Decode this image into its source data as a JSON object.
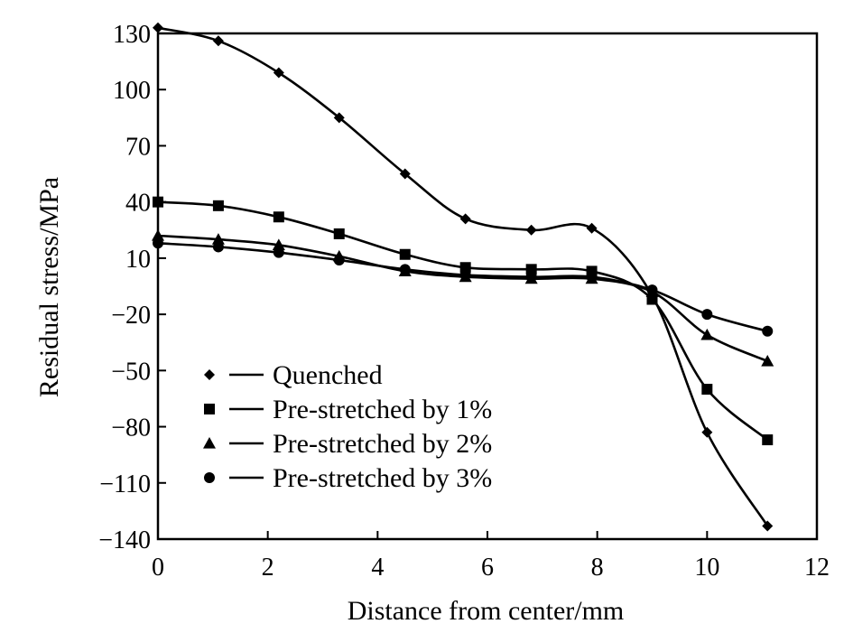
{
  "chart_data": {
    "type": "line",
    "xlabel": "Distance from center/mm",
    "ylabel": "Residual stress/MPa",
    "xlim": [
      0,
      12
    ],
    "ylim": [
      -140,
      130
    ],
    "xticks": [
      "0",
      "2",
      "4",
      "6",
      "8",
      "10",
      "12"
    ],
    "yticks": [
      "130",
      "100",
      "70",
      "40",
      "10",
      "−20",
      "−50",
      "−80",
      "−110",
      "−140"
    ],
    "grid": false,
    "legend_position": "bottom-left",
    "series": [
      {
        "name": "Quenched",
        "marker": "diamond",
        "x": [
          0,
          1.1,
          2.2,
          3.3,
          4.5,
          5.6,
          6.8,
          7.9,
          9.0,
          10.0,
          11.1
        ],
        "y": [
          133,
          126,
          109,
          85,
          55,
          31,
          25,
          26,
          -10,
          -83,
          -133
        ]
      },
      {
        "name": "Pre-stretched by 1%",
        "marker": "square",
        "x": [
          0,
          1.1,
          2.2,
          3.3,
          4.5,
          5.6,
          6.8,
          7.9,
          9.0,
          10.0,
          11.1
        ],
        "y": [
          40,
          38,
          32,
          23,
          12,
          5,
          4,
          3,
          -12,
          -60,
          -87
        ]
      },
      {
        "name": "Pre-stretched by 2%",
        "marker": "triangle",
        "x": [
          0,
          1.1,
          2.2,
          3.3,
          4.5,
          5.6,
          6.8,
          7.9,
          9.0,
          10.0,
          11.1
        ],
        "y": [
          22,
          20,
          17,
          11,
          3,
          0,
          -1,
          -1,
          -8,
          -31,
          -45
        ]
      },
      {
        "name": "Pre-stretched by 3%",
        "marker": "circle",
        "x": [
          0,
          1.1,
          2.2,
          3.3,
          4.5,
          5.6,
          6.8,
          7.9,
          9.0,
          10.0,
          11.1
        ],
        "y": [
          18,
          16,
          13,
          9,
          4,
          1,
          0,
          0,
          -7,
          -20,
          -29
        ]
      }
    ]
  }
}
